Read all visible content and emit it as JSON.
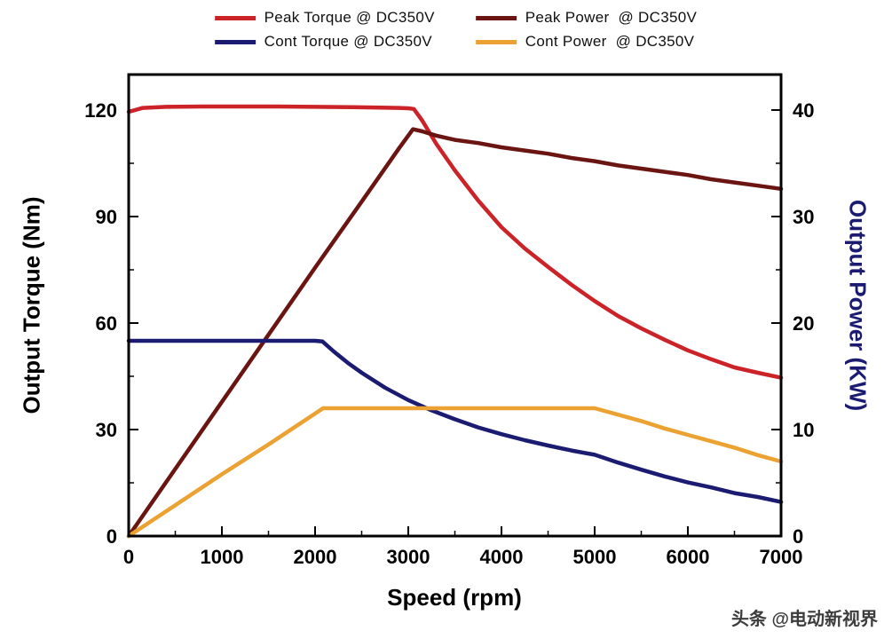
{
  "watermark": {
    "text": "头条 @电动新视界"
  },
  "chart_data": {
    "type": "line",
    "title": "",
    "xlabel": "Speed (rpm)",
    "ylabel_left": "Output Torque (Nm)",
    "ylabel_right": "Output Power (KW)",
    "xlim": [
      0,
      7000
    ],
    "ylim_left": [
      0,
      130
    ],
    "ylim_right": [
      0,
      43.33
    ],
    "x_ticks": [
      0,
      1000,
      2000,
      3000,
      4000,
      5000,
      6000,
      7000
    ],
    "x_minor_step": 500,
    "y_left_ticks": [
      0,
      30,
      60,
      90,
      120
    ],
    "y_left_minor_step": 15,
    "y_right_ticks": [
      0,
      10,
      20,
      30,
      40
    ],
    "y_right_minor_step": 5,
    "grid": false,
    "legend_position": "top",
    "axis_colors": {
      "left": "#000000",
      "right": "#1b1b72"
    },
    "series": [
      {
        "name": "Peak Torque @ DC350V",
        "color": "#cb2328",
        "axis": "left",
        "unit": "Nm",
        "x": [
          0,
          150,
          400,
          800,
          1200,
          1600,
          2000,
          2400,
          2700,
          2900,
          3000,
          3060,
          3150,
          3300,
          3500,
          3750,
          4000,
          4250,
          4500,
          4750,
          5000,
          5250,
          5500,
          5750,
          6000,
          6250,
          6500,
          6750,
          7000
        ],
        "y": [
          119.5,
          120.6,
          120.9,
          121.0,
          121.0,
          121.0,
          120.9,
          120.8,
          120.7,
          120.6,
          120.5,
          120.3,
          117.0,
          110.5,
          103.0,
          94.5,
          87.0,
          81.0,
          75.8,
          70.8,
          66.2,
          62.0,
          58.5,
          55.3,
          52.3,
          49.8,
          47.5,
          46.0,
          44.6
        ]
      },
      {
        "name": "Peak Power  @ DC350V",
        "color": "#6b1512",
        "axis": "right",
        "unit": "KW",
        "x": [
          0,
          500,
          1000,
          1500,
          2000,
          2500,
          2900,
          3050,
          3150,
          3300,
          3500,
          3750,
          4000,
          4250,
          4500,
          4750,
          5000,
          5250,
          5500,
          5750,
          6000,
          6250,
          6500,
          6750,
          7000
        ],
        "y": [
          0,
          6.3,
          12.6,
          18.9,
          25.2,
          31.4,
          36.4,
          38.2,
          38.0,
          37.6,
          37.2,
          36.9,
          36.5,
          36.2,
          35.9,
          35.5,
          35.2,
          34.8,
          34.5,
          34.2,
          33.9,
          33.5,
          33.2,
          32.9,
          32.6
        ]
      },
      {
        "name": "Cont Torque @ DC350V",
        "color": "#1b1b72",
        "axis": "left",
        "unit": "Nm",
        "x": [
          0,
          500,
          1000,
          1500,
          2000,
          2080,
          2200,
          2350,
          2500,
          2750,
          3000,
          3250,
          3500,
          3750,
          4000,
          4250,
          4500,
          4750,
          5000,
          5250,
          5500,
          5750,
          6000,
          6250,
          6500,
          6750,
          7000
        ],
        "y": [
          55,
          55,
          55,
          55,
          55,
          54.8,
          52.0,
          48.8,
          46.0,
          41.8,
          38.3,
          35.4,
          32.9,
          30.6,
          28.7,
          27.0,
          25.5,
          24.1,
          22.9,
          20.7,
          18.7,
          16.8,
          15.1,
          13.7,
          12.1,
          11.0,
          9.6
        ]
      },
      {
        "name": "Cont Power  @ DC350V",
        "color": "#eca233",
        "axis": "right",
        "unit": "KW",
        "x": [
          0,
          500,
          1000,
          1500,
          2000,
          2085,
          2500,
          3000,
          3500,
          4000,
          4500,
          5000,
          5250,
          5500,
          5750,
          6000,
          6250,
          6500,
          6750,
          7000
        ],
        "y": [
          0,
          2.9,
          5.8,
          8.6,
          11.5,
          12.0,
          12.0,
          12.0,
          12.0,
          12.0,
          12.0,
          12.0,
          11.4,
          10.8,
          10.1,
          9.5,
          8.9,
          8.3,
          7.6,
          7.0
        ]
      }
    ]
  }
}
